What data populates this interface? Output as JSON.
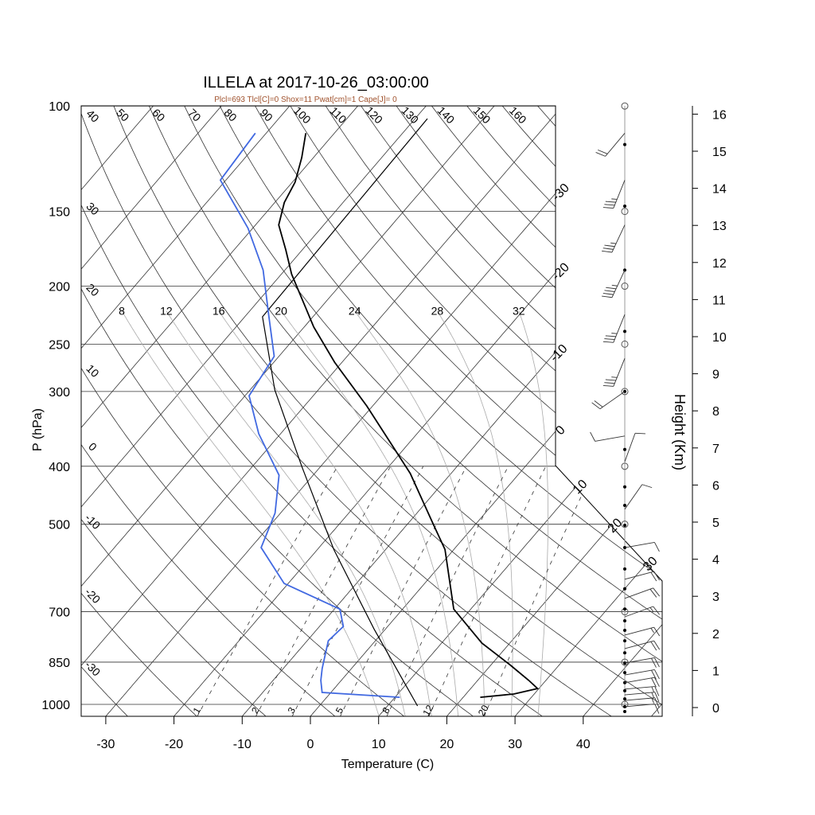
{
  "chart_data": {
    "type": "skewt",
    "title": "ILLELA at 2017-10-26_03:00:00",
    "subtitle": "Plcl=693 Tlcl[C]=0 Shox=11 Pwat[cm]=1 Cape[J]= 0",
    "xlabel": "Temperature (C)",
    "ylabel": "P (hPa)",
    "y2label": "Height (Km)",
    "xticks": [
      -30,
      -20,
      -10,
      0,
      10,
      20,
      30,
      40
    ],
    "pressure_levels": [
      100,
      150,
      200,
      250,
      300,
      400,
      500,
      700,
      850,
      1000
    ],
    "ylim_hpa": [
      1050,
      100
    ],
    "height_ticks_km": [
      0,
      1,
      2,
      3,
      4,
      5,
      6,
      7,
      8,
      9,
      10,
      11,
      12,
      13,
      14,
      15,
      16
    ],
    "isotherms": [
      -100,
      -90,
      -80,
      -70,
      -60,
      -50,
      -40,
      -30,
      -20,
      -10,
      0,
      10,
      20,
      30,
      40,
      50
    ],
    "isotherm_labels": [
      -30,
      -20,
      -10,
      0,
      10,
      20,
      30
    ],
    "dry_adiabats_c": [
      -30,
      -20,
      -10,
      0,
      10,
      20,
      30,
      40,
      50,
      60,
      70,
      80,
      90,
      100,
      110,
      120,
      130,
      140,
      150,
      160,
      170,
      180
    ],
    "dry_adiabat_labels_left": [
      40,
      30,
      20,
      10,
      0,
      -10,
      -20,
      -30
    ],
    "dry_adiabat_labels_top": [
      50,
      60,
      70,
      80,
      90,
      100,
      110,
      120,
      130,
      140,
      150,
      160
    ],
    "moist_adiabats": [
      8,
      12,
      16,
      20,
      24,
      28,
      32
    ],
    "mixing_ratios": [
      1,
      2,
      3,
      5,
      8,
      12,
      20
    ],
    "temperature": [
      {
        "p": 973,
        "t": 22.5
      },
      {
        "p": 961,
        "t": 27.0
      },
      {
        "p": 941,
        "t": 29.8
      },
      {
        "p": 912,
        "t": 27.5
      },
      {
        "p": 858,
        "t": 22.7
      },
      {
        "p": 790,
        "t": 15.9
      },
      {
        "p": 693,
        "t": 7.5
      },
      {
        "p": 551,
        "t": -1.3
      },
      {
        "p": 502,
        "t": -6.0
      },
      {
        "p": 411,
        "t": -16.0
      },
      {
        "p": 317,
        "t": -30.9
      },
      {
        "p": 268,
        "t": -41.1
      },
      {
        "p": 234,
        "t": -48.6
      },
      {
        "p": 191,
        "t": -58.5
      },
      {
        "p": 174,
        "t": -62.4
      },
      {
        "p": 158,
        "t": -66.6
      },
      {
        "p": 145,
        "t": -68.6
      },
      {
        "p": 134,
        "t": -69.6
      },
      {
        "p": 122,
        "t": -71.7
      },
      {
        "p": 111,
        "t": -74.2
      }
    ],
    "dewpoint": [
      {
        "p": 973,
        "t": 10.7
      },
      {
        "p": 955,
        "t": -1.3
      },
      {
        "p": 912,
        "t": -3.0
      },
      {
        "p": 871,
        "t": -4.3
      },
      {
        "p": 783,
        "t": -6.9
      },
      {
        "p": 741,
        "t": -6.5
      },
      {
        "p": 693,
        "t": -9.2
      },
      {
        "p": 628,
        "t": -20.6
      },
      {
        "p": 547,
        "t": -28.5
      },
      {
        "p": 479,
        "t": -30.8
      },
      {
        "p": 414,
        "t": -35.0
      },
      {
        "p": 353,
        "t": -43.2
      },
      {
        "p": 305,
        "t": -49.4
      },
      {
        "p": 262,
        "t": -50.7
      },
      {
        "p": 223,
        "t": -56.8
      },
      {
        "p": 188,
        "t": -63.2
      },
      {
        "p": 160,
        "t": -70.7
      },
      {
        "p": 133,
        "t": -80.8
      },
      {
        "p": 111,
        "t": -81.6
      }
    ],
    "parcel": [
      {
        "p": 1006,
        "t": 14.4
      },
      {
        "p": 748,
        "t": -1.7
      },
      {
        "p": 551,
        "t": -17.6
      },
      {
        "p": 400,
        "t": -32.8
      },
      {
        "p": 298,
        "t": -46.4
      },
      {
        "p": 225,
        "t": -57.4
      },
      {
        "p": 105,
        "t": -58.2
      }
    ],
    "winds": [
      {
        "p": 111,
        "dir": 220,
        "spd": 20
      },
      {
        "p": 133,
        "dir": 202,
        "spd": 35
      },
      {
        "p": 158,
        "dir": 205,
        "spd": 35
      },
      {
        "p": 188,
        "dir": 205,
        "spd": 45
      },
      {
        "p": 223,
        "dir": 202,
        "spd": 35
      },
      {
        "p": 264,
        "dir": 202,
        "spd": 35
      },
      {
        "p": 300,
        "dir": 235,
        "spd": 20
      },
      {
        "p": 356,
        "dir": 260,
        "spd": 10
      },
      {
        "p": 393,
        "dir": 20,
        "spd": 10
      },
      {
        "p": 472,
        "dir": 35,
        "spd": 10
      },
      {
        "p": 547,
        "dir": 80,
        "spd": 10
      },
      {
        "p": 618,
        "dir": 75,
        "spd": 20
      },
      {
        "p": 665,
        "dir": 70,
        "spd": 20
      },
      {
        "p": 714,
        "dir": 70,
        "spd": 15
      },
      {
        "p": 766,
        "dir": 75,
        "spd": 15
      },
      {
        "p": 807,
        "dir": 75,
        "spd": 20
      },
      {
        "p": 853,
        "dir": 80,
        "spd": 20
      },
      {
        "p": 893,
        "dir": 80,
        "spd": 20
      },
      {
        "p": 920,
        "dir": 80,
        "spd": 20
      },
      {
        "p": 943,
        "dir": 85,
        "spd": 15
      },
      {
        "p": 964,
        "dir": 85,
        "spd": 15
      },
      {
        "p": 985,
        "dir": 85,
        "spd": 15
      },
      {
        "p": 1009,
        "dir": 85,
        "spd": 10
      }
    ],
    "obs_levels": [
      116,
      147,
      188,
      238,
      300,
      375,
      433,
      465,
      502,
      547,
      594,
      641,
      693,
      725,
      752,
      783,
      820,
      853,
      885,
      920,
      949,
      979,
      1009,
      1028
    ]
  },
  "colors": {
    "temperature": "#000000",
    "dewpoint": "#4169e1",
    "parcel": "#000000",
    "grid": "#000000",
    "moist": "#aaaaaa",
    "subtitle": "#a0522d"
  }
}
